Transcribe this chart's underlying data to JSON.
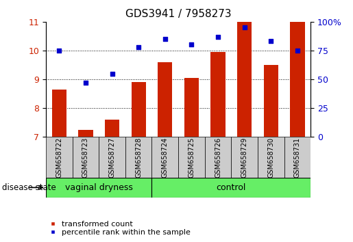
{
  "title": "GDS3941 / 7958273",
  "samples": [
    "GSM658722",
    "GSM658723",
    "GSM658727",
    "GSM658728",
    "GSM658724",
    "GSM658725",
    "GSM658726",
    "GSM658729",
    "GSM658730",
    "GSM658731"
  ],
  "red_values": [
    8.65,
    7.25,
    7.6,
    8.9,
    9.6,
    9.05,
    9.95,
    11.0,
    9.5,
    11.0
  ],
  "blue_percentiles": [
    75,
    47,
    55,
    78,
    85,
    80,
    87,
    95,
    83,
    75
  ],
  "group1_count": 4,
  "group1_label": "vaginal dryness",
  "group2_label": "control",
  "group_color": "#66ee66",
  "sample_box_color": "#cccccc",
  "ylim_left": [
    7,
    11
  ],
  "ylim_right": [
    0,
    100
  ],
  "yticks_left": [
    7,
    8,
    9,
    10,
    11
  ],
  "yticks_right": [
    0,
    25,
    50,
    75,
    100
  ],
  "bar_color": "#cc2200",
  "dot_color": "#0000cc",
  "bar_width": 0.55,
  "background_color": "#ffffff",
  "title_fontsize": 11,
  "tick_fontsize": 9,
  "sample_fontsize": 7,
  "group_fontsize": 9,
  "legend_fontsize": 8,
  "disease_state_label": "disease state",
  "legend_items": [
    "transformed count",
    "percentile rank within the sample"
  ],
  "grid_ticks": [
    8,
    9,
    10
  ]
}
